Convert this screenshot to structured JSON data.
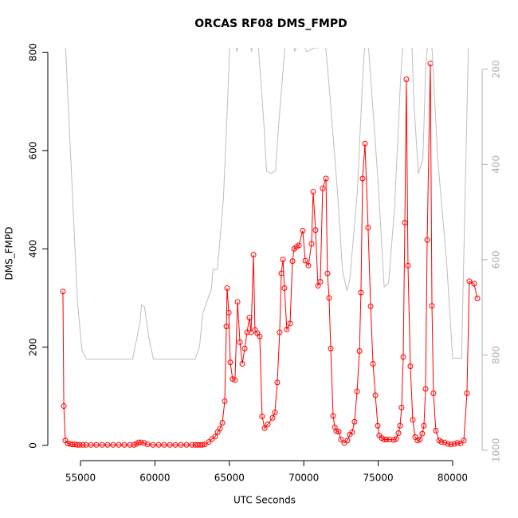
{
  "chart_data": {
    "type": "line",
    "title": "ORCAS RF08 DMS_FMPD",
    "x_label": "UTC Seconds",
    "y_label": "DMS_FMPD",
    "xlim": [
      52805,
      81981
    ],
    "xticks": [
      55000,
      60000,
      65000,
      70000,
      75000,
      80000
    ],
    "ylim": [
      -31,
      809
    ],
    "yticks": [
      0,
      200,
      400,
      600,
      800
    ],
    "y2lim": [
      1022,
      155
    ],
    "y2ticks": [
      200,
      400,
      600,
      800,
      1000
    ],
    "series": [
      {
        "color": "#ff0000",
        "marker": "circle",
        "x": [
          53820,
          53880,
          53980,
          54140,
          54300,
          54460,
          54630,
          54790,
          54950,
          55160,
          55370,
          55700,
          56070,
          56450,
          56820,
          57190,
          57570,
          57940,
          58320,
          58590,
          58750,
          58910,
          59070,
          59280,
          59500,
          59870,
          60250,
          60620,
          61000,
          61370,
          61740,
          62120,
          62490,
          62710,
          62870,
          63030,
          63190,
          63350,
          63620,
          63830,
          64050,
          64210,
          64370,
          64530,
          64690,
          64800,
          64850,
          64960,
          65060,
          65220,
          65380,
          65550,
          65710,
          65870,
          66030,
          66190,
          66350,
          66460,
          66620,
          66720,
          66880,
          67040,
          67200,
          67370,
          67580,
          67900,
          68060,
          68220,
          68380,
          68490,
          68600,
          68700,
          68860,
          69080,
          69240,
          69350,
          69510,
          69670,
          69930,
          70100,
          70310,
          70520,
          70630,
          70790,
          70950,
          71110,
          71270,
          71490,
          71590,
          71700,
          71810,
          71970,
          72080,
          72180,
          72340,
          72500,
          72720,
          72930,
          73090,
          73250,
          73410,
          73580,
          73740,
          73840,
          73950,
          74110,
          74320,
          74490,
          74650,
          74810,
          74970,
          75070,
          75230,
          75390,
          75560,
          75770,
          76040,
          76200,
          76360,
          76470,
          76570,
          76680,
          76790,
          76890,
          77000,
          77160,
          77320,
          77480,
          77640,
          77800,
          77960,
          78070,
          78180,
          78290,
          78500,
          78610,
          78710,
          78870,
          79090,
          79250,
          79460,
          79680,
          79890,
          80110,
          80320,
          80530,
          80750,
          80960,
          81120,
          81440,
          81660
        ],
        "values": [
          313,
          80,
          10,
          4,
          3,
          2,
          2,
          1,
          1,
          1,
          1,
          1,
          1,
          1,
          1,
          1,
          1,
          1,
          1,
          1,
          3,
          6,
          6,
          5,
          2,
          1,
          1,
          1,
          1,
          1,
          1,
          1,
          1,
          1,
          1,
          1,
          1,
          2,
          7,
          13,
          18,
          27,
          34,
          46,
          90,
          242,
          320,
          270,
          169,
          135,
          133,
          292,
          210,
          166,
          197,
          230,
          260,
          230,
          388,
          235,
          228,
          222,
          59,
          35,
          43,
          56,
          67,
          128,
          230,
          350,
          378,
          320,
          236,
          248,
          375,
          400,
          404,
          407,
          437,
          376,
          366,
          410,
          516,
          438,
          325,
          333,
          523,
          543,
          350,
          300,
          197,
          60,
          37,
          29,
          28,
          12,
          5,
          10,
          22,
          27,
          48,
          110,
          192,
          311,
          543,
          614,
          443,
          283,
          166,
          102,
          40,
          20,
          15,
          12,
          12,
          12,
          11,
          13,
          25,
          40,
          77,
          180,
          453,
          745,
          366,
          161,
          52,
          17,
          10,
          12,
          24,
          40,
          115,
          418,
          777,
          284,
          106,
          30,
          10,
          7,
          6,
          3,
          2,
          3,
          5,
          4,
          10,
          106,
          334,
          329,
          299
        ]
      },
      {
        "color": "#bebebe",
        "axis": "y2",
        "x": [
          53900,
          54800,
          55100,
          55400,
          58500,
          59000,
          59100,
          59300,
          59600,
          59900,
          62700,
          63000,
          63200,
          63800,
          63900,
          64200,
          64600,
          64900,
          65100,
          65500,
          65800,
          66200,
          66500,
          66800,
          67300,
          67500,
          67800,
          68100,
          68300,
          68900,
          69400,
          69700,
          70200,
          70700,
          71000,
          71300,
          71800,
          72300,
          72600,
          72900,
          73100,
          73600,
          73900,
          74200,
          75000,
          75400,
          75700,
          76100,
          76500,
          76700,
          77200,
          77400,
          77700,
          78000,
          78200,
          78500,
          79000,
          79600,
          80000,
          80600,
          81100,
          81700
        ],
        "values": [
          88,
          690,
          791,
          809,
          809,
          732,
          695,
          699,
          766,
          809,
          809,
          782,
          715,
          660,
          620,
          620,
          473,
          255,
          88,
          163,
          130,
          130,
          163,
          88,
          305,
          414,
          419,
          414,
          322,
          88,
          163,
          130,
          163,
          155,
          155,
          88,
          272,
          473,
          623,
          665,
          640,
          456,
          255,
          88,
          439,
          657,
          649,
          490,
          222,
          121,
          88,
          272,
          419,
          389,
          188,
          88,
          389,
          607,
          807,
          807,
          88,
          88
        ]
      }
    ]
  }
}
